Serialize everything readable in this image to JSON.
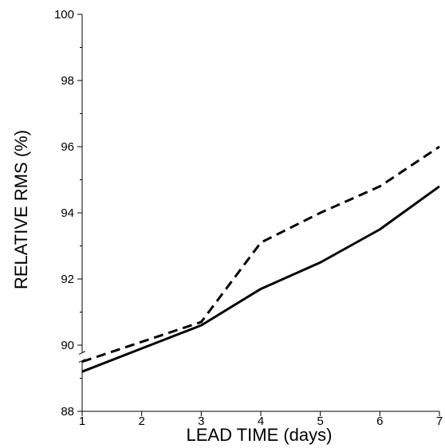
{
  "chart_data": {
    "type": "line",
    "title": "",
    "xlabel": "LEAD TIME (days)",
    "ylabel": "RELATIVE RMS (%)",
    "xlim": [
      1,
      7
    ],
    "ylim": [
      88,
      100
    ],
    "x_ticks": [
      1,
      2,
      3,
      4,
      5,
      6,
      7
    ],
    "y_ticks": [
      88,
      90,
      92,
      94,
      96,
      98,
      100
    ],
    "y_axis_break_near": 89.6,
    "grid": false,
    "legend": "none",
    "x": [
      1,
      2,
      3,
      4,
      5,
      6,
      7
    ],
    "series": [
      {
        "style": "solid",
        "color": "#000000",
        "values": [
          89.2,
          89.9,
          90.6,
          91.7,
          92.5,
          93.5,
          94.8
        ]
      },
      {
        "style": "dashed",
        "color": "#000000",
        "values": [
          89.5,
          90.1,
          90.7,
          93.1,
          94.0,
          94.8,
          96.0
        ]
      }
    ]
  }
}
